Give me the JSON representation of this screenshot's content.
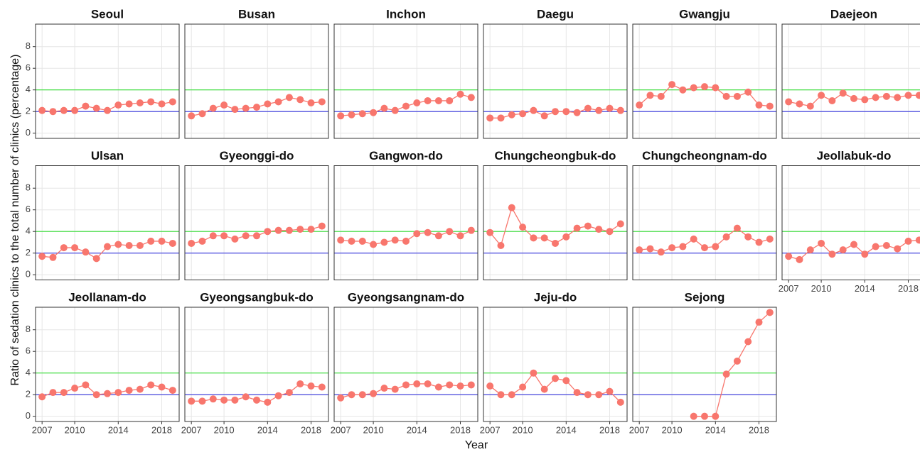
{
  "chart_data": {
    "type": "line",
    "xlabel": "Year",
    "ylabel": "Ratio of sedation clinics to the total number of clinics (percentage)",
    "x": [
      2007,
      2008,
      2009,
      2010,
      2011,
      2012,
      2013,
      2014,
      2015,
      2016,
      2017,
      2018,
      2019
    ],
    "xlim": [
      2006.4,
      2019.6
    ],
    "xticks": [
      2007,
      2010,
      2014,
      2018
    ],
    "ylim": [
      -0.48,
      10.08
    ],
    "yticks": [
      0,
      2,
      4,
      6,
      8
    ],
    "grid": true,
    "color": "#f8766d",
    "hlines": [
      {
        "value": 2,
        "color": "#3333dd"
      },
      {
        "value": 4,
        "color": "#33dd33"
      }
    ],
    "panels": [
      {
        "title": "Seoul",
        "values": [
          2.1,
          2.0,
          2.1,
          2.1,
          2.5,
          2.3,
          2.1,
          2.6,
          2.7,
          2.8,
          2.9,
          2.7,
          2.9
        ]
      },
      {
        "title": "Busan",
        "values": [
          1.6,
          1.8,
          2.3,
          2.6,
          2.2,
          2.3,
          2.4,
          2.7,
          2.9,
          3.3,
          3.1,
          2.8,
          2.9
        ]
      },
      {
        "title": "Inchon",
        "values": [
          1.6,
          1.7,
          1.8,
          1.9,
          2.3,
          2.1,
          2.5,
          2.8,
          3.0,
          3.0,
          3.0,
          3.6,
          3.3
        ]
      },
      {
        "title": "Daegu",
        "values": [
          1.4,
          1.4,
          1.7,
          1.8,
          2.1,
          1.6,
          2.0,
          2.0,
          1.9,
          2.3,
          2.1,
          2.3,
          2.1
        ]
      },
      {
        "title": "Gwangju",
        "values": [
          2.6,
          3.5,
          3.4,
          4.5,
          4.0,
          4.2,
          4.3,
          4.2,
          3.4,
          3.4,
          3.8,
          2.6,
          2.5
        ]
      },
      {
        "title": "Daejeon",
        "values": [
          2.9,
          2.7,
          2.5,
          3.5,
          3.0,
          3.7,
          3.2,
          3.1,
          3.3,
          3.4,
          3.3,
          3.5,
          3.5
        ]
      },
      {
        "title": "Ulsan",
        "values": [
          1.7,
          1.6,
          2.5,
          2.5,
          2.1,
          1.5,
          2.6,
          2.8,
          2.7,
          2.7,
          3.1,
          3.1,
          2.9
        ]
      },
      {
        "title": "Gyeonggi-do",
        "values": [
          2.9,
          3.1,
          3.6,
          3.6,
          3.3,
          3.6,
          3.6,
          4.0,
          4.1,
          4.1,
          4.2,
          4.2,
          4.5
        ]
      },
      {
        "title": "Gangwon-do",
        "values": [
          3.2,
          3.1,
          3.1,
          2.8,
          3.0,
          3.2,
          3.1,
          3.8,
          3.9,
          3.6,
          4.0,
          3.6,
          4.1
        ]
      },
      {
        "title": "Chungcheongbuk-do",
        "values": [
          3.9,
          2.7,
          6.2,
          4.4,
          3.4,
          3.4,
          2.9,
          3.5,
          4.3,
          4.5,
          4.2,
          4.0,
          4.7
        ]
      },
      {
        "title": "Chungcheongnam-do",
        "values": [
          2.3,
          2.4,
          2.1,
          2.5,
          2.6,
          3.3,
          2.5,
          2.6,
          3.5,
          4.3,
          3.5,
          3.0,
          3.3
        ]
      },
      {
        "title": "Jeollabuk-do",
        "values": [
          1.7,
          1.4,
          2.3,
          2.9,
          1.9,
          2.3,
          2.8,
          1.9,
          2.6,
          2.7,
          2.4,
          3.1,
          3.2
        ]
      },
      {
        "title": "Jeollanam-do",
        "values": [
          1.8,
          2.2,
          2.2,
          2.6,
          2.9,
          2.0,
          2.1,
          2.2,
          2.4,
          2.5,
          2.9,
          2.7,
          2.4
        ]
      },
      {
        "title": "Gyeongsangbuk-do",
        "values": [
          1.4,
          1.4,
          1.6,
          1.5,
          1.5,
          1.8,
          1.5,
          1.3,
          1.9,
          2.2,
          3.0,
          2.8,
          2.7
        ]
      },
      {
        "title": "Gyeongsangnam-do",
        "values": [
          1.7,
          2.0,
          2.0,
          2.1,
          2.6,
          2.5,
          2.9,
          3.0,
          3.0,
          2.7,
          2.9,
          2.8,
          2.9
        ]
      },
      {
        "title": "Jeju-do",
        "values": [
          2.8,
          2.0,
          2.0,
          2.7,
          4.0,
          2.5,
          3.5,
          3.3,
          2.2,
          2.0,
          2.0,
          2.3,
          1.3
        ]
      },
      {
        "title": "Sejong",
        "values": [
          null,
          null,
          null,
          null,
          null,
          0.0,
          0.0,
          0.0,
          3.9,
          5.1,
          6.9,
          8.7,
          9.6
        ]
      }
    ]
  }
}
